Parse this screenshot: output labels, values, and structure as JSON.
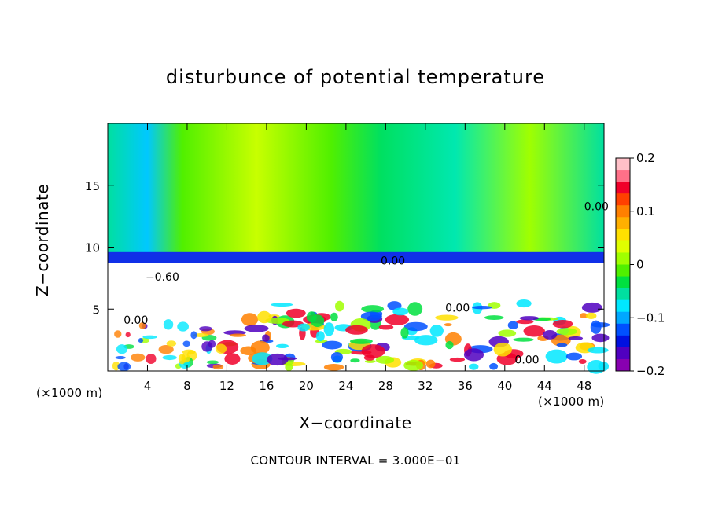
{
  "chart_data": {
    "type": "heatmap",
    "title": "disturbunce of potential temperature",
    "xlabel": "X−coordinate",
    "ylabel": "Z−coordinate",
    "x_unit_label": "(×1000 m)",
    "footer": "CONTOUR INTERVAL = 3.000E−01",
    "xlim": [
      0,
      50
    ],
    "ylim": [
      0,
      20
    ],
    "x_ticks": [
      4,
      8,
      12,
      16,
      20,
      24,
      28,
      32,
      36,
      40,
      44,
      48
    ],
    "y_ticks": [
      5,
      10,
      15
    ],
    "colorbar": {
      "min": -0.2,
      "max": 0.2,
      "ticks": [
        0.2,
        0.1,
        0,
        -0.1,
        -0.2
      ],
      "tick_labels": [
        "0.2",
        "0.1",
        "0",
        "−0.1",
        "−0.2"
      ],
      "colors": [
        "#ffc0c8",
        "#ff7088",
        "#f0002a",
        "#ff4000",
        "#ff8000",
        "#ffb000",
        "#ffe000",
        "#e0ff00",
        "#a0ff00",
        "#50f000",
        "#00e040",
        "#00e0a0",
        "#00e8ff",
        "#00a8ff",
        "#0050ff",
        "#0010e0",
        "#5000c0",
        "#8800b0"
      ]
    },
    "contour_labels": [
      {
        "text": "0.00",
        "x": 27.5,
        "z": 8.6
      },
      {
        "text": "0.00",
        "x": 64.0,
        "z": 13.0
      },
      {
        "text": "0.00",
        "x": 34.0,
        "z": 4.8
      },
      {
        "text": "0.00",
        "x": 41.0,
        "z": 0.6
      },
      {
        "text": "−0.60",
        "x": 3.8,
        "z": 7.3
      },
      {
        "text": "0.00",
        "x": 1.6,
        "z": 3.8
      }
    ]
  }
}
